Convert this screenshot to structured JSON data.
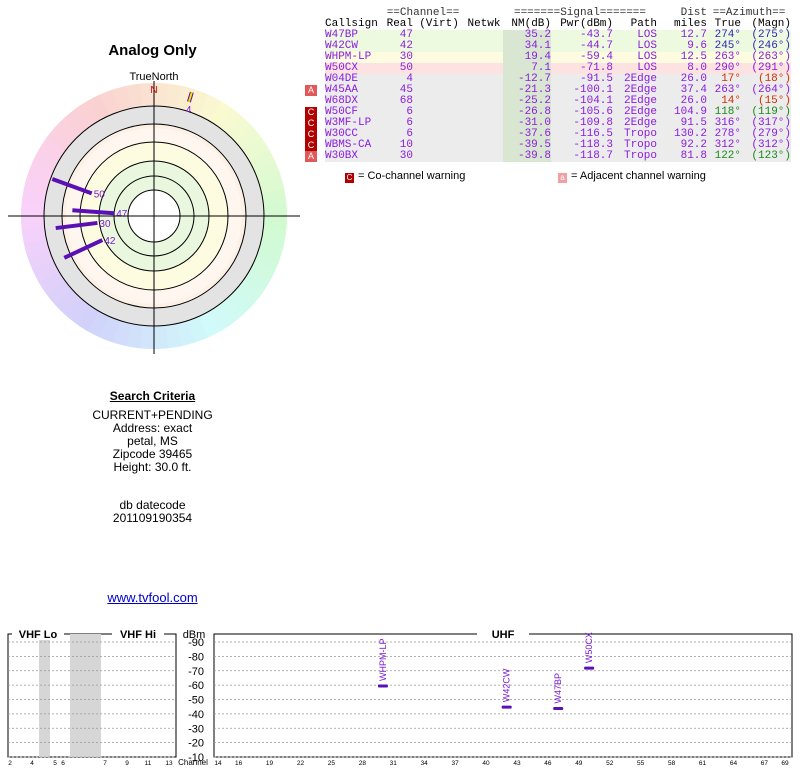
{
  "title": "Analog Only",
  "radar": {
    "north_label": "TrueNorth",
    "n_marker": "N",
    "stations": [
      {
        "label": "4",
        "azimuth": 17,
        "level": 0.98
      },
      {
        "label": "50",
        "azimuth": 290,
        "level": 0.82
      },
      {
        "label": "47",
        "azimuth": 274,
        "level": 0.62
      },
      {
        "label": "30",
        "azimuth": 263,
        "level": 0.75
      },
      {
        "label": "42",
        "azimuth": 245,
        "level": 0.75
      }
    ]
  },
  "criteria": {
    "heading": "Search Criteria",
    "lines": [
      "CURRENT+PENDING",
      "Address: exact",
      "petal, MS",
      "Zipcode 39465",
      "Height: 30.0 ft."
    ],
    "db_label": "db datecode",
    "db_value": "201109190354"
  },
  "site_link": "www.tvfool.com",
  "table": {
    "group_headers": {
      "channel": "==Channel==",
      "signal": "=======Signal=======",
      "dist": "Dist",
      "azimuth": "==Azimuth=="
    },
    "col_headers": {
      "callsign": "Callsign",
      "real": "Real",
      "virt": "(Virt)",
      "netwk": "Netwk",
      "nm": "NM(dB)",
      "pwr": "Pwr(dBm)",
      "path": "Path",
      "miles": "miles",
      "true": "True",
      "magn": "(Magn)"
    },
    "rows": [
      {
        "warn": "",
        "callsign": "W47BP",
        "real": "47",
        "nm": "35.2",
        "pwr": "-43.7",
        "path": "LOS",
        "dist": "12.7",
        "az_true": "274°",
        "az_magn": "(275°)",
        "bg": "#eefadf",
        "fg": "#8a1ce0",
        "az_color": "#2a2ab4"
      },
      {
        "warn": "",
        "callsign": "W42CW",
        "real": "42",
        "nm": "34.1",
        "pwr": "-44.7",
        "path": "LOS",
        "dist": "9.6",
        "az_true": "245°",
        "az_magn": "(246°)",
        "bg": "#eefadf",
        "fg": "#8a1ce0",
        "az_color": "#2a2ab4"
      },
      {
        "warn": "",
        "callsign": "WHPM-LP",
        "real": "30",
        "nm": "19.4",
        "pwr": "-59.4",
        "path": "LOS",
        "dist": "12.5",
        "az_true": "263°",
        "az_magn": "(263°)",
        "bg": "#fdfce0",
        "fg": "#8a1ce0",
        "az_color": "#8a1ce0"
      },
      {
        "warn": "",
        "callsign": "W50CX",
        "real": "50",
        "nm": "7.1",
        "pwr": "-71.8",
        "path": "LOS",
        "dist": "8.0",
        "az_true": "290°",
        "az_magn": "(291°)",
        "bg": "#fde2e2",
        "fg": "#8a1ce0",
        "az_color": "#8a1ce0"
      },
      {
        "warn": "",
        "callsign": "W04DE",
        "real": "4",
        "nm": "-12.7",
        "pwr": "-91.5",
        "path": "2Edge",
        "dist": "26.0",
        "az_true": "17°",
        "az_magn": "(18°)",
        "bg": "#ececec",
        "fg": "#8a1ce0",
        "az_color": "#d03000"
      },
      {
        "warn": "A",
        "callsign": "W45AA",
        "real": "45",
        "nm": "-21.3",
        "pwr": "-100.1",
        "path": "2Edge",
        "dist": "37.4",
        "az_true": "263°",
        "az_magn": "(264°)",
        "bg": "#ececec",
        "fg": "#8a1ce0",
        "az_color": "#8a1ce0"
      },
      {
        "warn": "",
        "callsign": "W68DX",
        "real": "68",
        "nm": "-25.2",
        "pwr": "-104.1",
        "path": "2Edge",
        "dist": "26.0",
        "az_true": "14°",
        "az_magn": "(15°)",
        "bg": "#ececec",
        "fg": "#8a1ce0",
        "az_color": "#d03000"
      },
      {
        "warn": "C",
        "callsign": "W50CF",
        "real": "6",
        "nm": "-26.8",
        "pwr": "-105.6",
        "path": "2Edge",
        "dist": "104.9",
        "az_true": "118°",
        "az_magn": "(119°)",
        "bg": "#ececec",
        "fg": "#8a1ce0",
        "az_color": "#1a8a1a"
      },
      {
        "warn": "C",
        "callsign": "W3MF-LP",
        "real": "6",
        "nm": "-31.0",
        "pwr": "-109.8",
        "path": "2Edge",
        "dist": "91.5",
        "az_true": "316°",
        "az_magn": "(317°)",
        "bg": "#ececec",
        "fg": "#8a1ce0",
        "az_color": "#8a1ce0"
      },
      {
        "warn": "C",
        "callsign": "W30CC",
        "real": "6",
        "nm": "-37.6",
        "pwr": "-116.5",
        "path": "Tropo",
        "dist": "130.2",
        "az_true": "278°",
        "az_magn": "(279°)",
        "bg": "#ececec",
        "fg": "#8a1ce0",
        "az_color": "#8a1ce0"
      },
      {
        "warn": "C",
        "callsign": "WBMS-CA",
        "real": "10",
        "nm": "-39.5",
        "pwr": "-118.3",
        "path": "Tropo",
        "dist": "92.2",
        "az_true": "312°",
        "az_magn": "(312°)",
        "bg": "#ececec",
        "fg": "#8a1ce0",
        "az_color": "#8a1ce0"
      },
      {
        "warn": "A",
        "callsign": "W30BX",
        "real": "30",
        "nm": "-39.8",
        "pwr": "-118.7",
        "path": "Tropo",
        "dist": "81.8",
        "az_true": "122°",
        "az_magn": "(123°)",
        "bg": "#ececec",
        "fg": "#8a1ce0",
        "az_color": "#1a8a1a"
      }
    ],
    "legend": {
      "co_box": "C",
      "co_text": "= Co-channel warning",
      "adj_box": "a",
      "adj_text": "= Adjacent channel warning"
    }
  },
  "chart_data": {
    "type": "scatter",
    "title": "",
    "ylabel": "dBm",
    "xlabel": "Channel",
    "ylim": [
      -90,
      -10
    ],
    "y_ticks": [
      "-10",
      "-20",
      "-30",
      "-40",
      "-50",
      "-60",
      "-70",
      "-80",
      "-90"
    ],
    "bands": [
      {
        "name": "VHF Lo",
        "channels": [
          "2",
          "3",
          "4",
          "5",
          "6"
        ],
        "shaded": [
          "4",
          "6"
        ]
      },
      {
        "name": "VHF Hi",
        "channels": [
          "7",
          "8",
          "9",
          "10",
          "11",
          "12",
          "13"
        ],
        "shaded": [
          "7"
        ]
      },
      {
        "name": "UHF",
        "channels": [
          "14",
          "15",
          "16",
          "17",
          "18",
          "19",
          "20",
          "21",
          "22",
          "23",
          "24",
          "25",
          "26",
          "27",
          "28",
          "29",
          "30",
          "31",
          "32",
          "33",
          "34",
          "35",
          "36",
          "37",
          "38",
          "39",
          "40",
          "41",
          "42",
          "43",
          "44",
          "45",
          "46",
          "47",
          "48",
          "49",
          "50",
          "51",
          "52",
          "53",
          "54",
          "55",
          "56",
          "57",
          "58",
          "59",
          "60",
          "61",
          "62",
          "63",
          "64",
          "65",
          "66",
          "67",
          "68",
          "69"
        ],
        "shaded": []
      }
    ],
    "tick_labels": [
      "2",
      "4",
      "5",
      "6",
      "7",
      "9",
      "11",
      "13",
      "14",
      "16",
      "19",
      "22",
      "25",
      "28",
      "31",
      "34",
      "37",
      "40",
      "43",
      "46",
      "49",
      "52",
      "55",
      "58",
      "61",
      "64",
      "67",
      "69"
    ],
    "points": [
      {
        "label": "WHPM-LP",
        "channel": 30,
        "dbm": -59.4
      },
      {
        "label": "W42CW",
        "channel": 42,
        "dbm": -44.7
      },
      {
        "label": "W47BP",
        "channel": 47,
        "dbm": -43.7
      },
      {
        "label": "W50CX",
        "channel": 50,
        "dbm": -71.8
      }
    ],
    "grid": true
  }
}
